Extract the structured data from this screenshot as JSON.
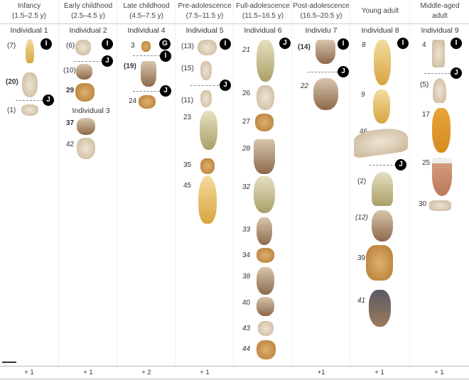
{
  "columns": [
    {
      "stage": "Infancy",
      "range": "(1.5–2.5 y)",
      "individual": "Individual 1",
      "footer": "+ 1",
      "items": [
        "(7)",
        "(20)",
        "(1)"
      ],
      "badges": [
        "I",
        "J"
      ]
    },
    {
      "stage": "Early childhood",
      "range": "(2.5–4.5 y)",
      "individual": "Individual 2",
      "footer": "+ 1",
      "items": [
        "(6)",
        "(10)",
        "29",
        "37",
        "42"
      ],
      "badges": [
        "I",
        "J"
      ],
      "sub_individual": "Individual 3"
    },
    {
      "stage": "Late childhood",
      "range": "(4.5–7.5 y)",
      "individual": "Individual 4",
      "footer": "+ 2",
      "items": [
        "3",
        "(19)",
        "24"
      ],
      "badges": [
        "G",
        "I",
        "J"
      ]
    },
    {
      "stage": "Pre-adolescence",
      "range": "(7.5–11.5 y)",
      "individual": "Individual 5",
      "footer": "+ 1",
      "items": [
        "(13)",
        "(15)",
        "(11)",
        "23",
        "35",
        "45"
      ],
      "badges": [
        "I",
        "J"
      ]
    },
    {
      "stage": "Full-adolescence",
      "range": "(11.5–16.5 y)",
      "individual": "Individual 6",
      "footer": "",
      "items": [
        "21",
        "26",
        "27",
        "28",
        "32",
        "33",
        "34",
        "38",
        "40",
        "43",
        "44"
      ],
      "badges": [
        "J"
      ]
    },
    {
      "stage": "Post-adolescence",
      "range": "(16.5–20.5 y)",
      "individual": "Individu 7",
      "footer": "+1",
      "items": [
        "(14)",
        "22"
      ],
      "badges": [
        "I",
        "J"
      ]
    },
    {
      "stage": "Young adult",
      "range": "",
      "individual": "Individual 8",
      "footer": "+ 1",
      "items": [
        "8",
        "9",
        "46",
        "(2)",
        "(12)",
        "39",
        "41"
      ],
      "badges": [
        "I",
        "J"
      ]
    },
    {
      "stage": "Middle-aged",
      "range": "adult",
      "individual": "Individual 9",
      "footer": "+ 1",
      "items": [
        "4",
        "(5)",
        "17",
        "25",
        "30"
      ],
      "badges": [
        "I",
        "J"
      ]
    }
  ]
}
